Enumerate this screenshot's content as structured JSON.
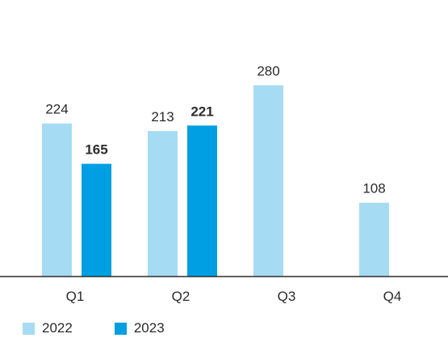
{
  "chart_data": {
    "type": "bar",
    "title": "",
    "xlabel": "",
    "ylabel": "",
    "categories": [
      "Q1",
      "Q2",
      "Q3",
      "Q4"
    ],
    "ylim": [
      0,
      300
    ],
    "grid": false,
    "legend_position": "bottom-left",
    "series": [
      {
        "name": "2022",
        "color": "#a6dcf3",
        "values": [
          224,
          213,
          280,
          108
        ],
        "labels": [
          "224",
          "213",
          "280",
          "108"
        ],
        "bold_labels": false
      },
      {
        "name": "2023",
        "color": "#009fe3",
        "values": [
          165,
          221,
          null,
          null
        ],
        "labels": [
          "165",
          "221",
          "",
          ""
        ],
        "bold_labels": true
      }
    ]
  }
}
